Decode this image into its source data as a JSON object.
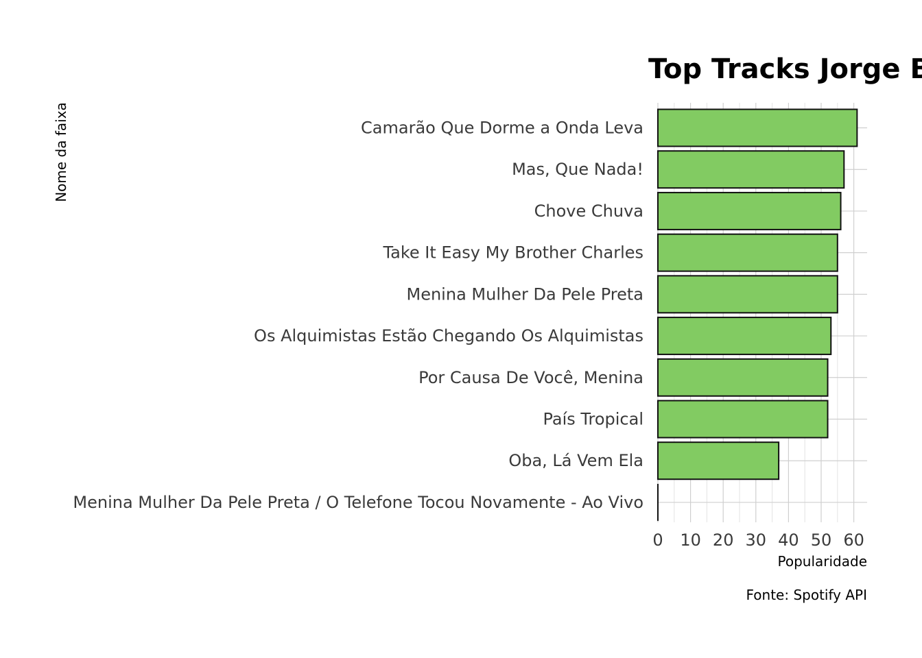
{
  "chart_data": {
    "type": "bar",
    "orientation": "horizontal",
    "title": "Top Tracks Jorge Ben",
    "xlabel": "Popularidade",
    "ylabel": "Nome da faixa",
    "caption": "Fonte: Spotify API",
    "categories": [
      "Camarão Que Dorme a Onda Leva",
      "Mas, Que Nada!",
      "Chove Chuva",
      "Take It Easy My Brother Charles",
      "Menina Mulher Da Pele Preta",
      "Os Alquimistas Estão Chegando Os Alquimistas",
      "Por Causa De Você, Menina",
      "País Tropical",
      "Oba, Lá Vem Ela",
      "Menina Mulher Da Pele Preta / O Telefone Tocou Novamente - Ao Vivo"
    ],
    "values": [
      61,
      57,
      56,
      55,
      55,
      53,
      52,
      52,
      37,
      0
    ],
    "xlim": [
      0,
      64
    ],
    "x_ticks": [
      0,
      10,
      20,
      30,
      40,
      50,
      60
    ],
    "grid": true,
    "bar_color": "#82cb62",
    "bar_outline": "#111111"
  }
}
